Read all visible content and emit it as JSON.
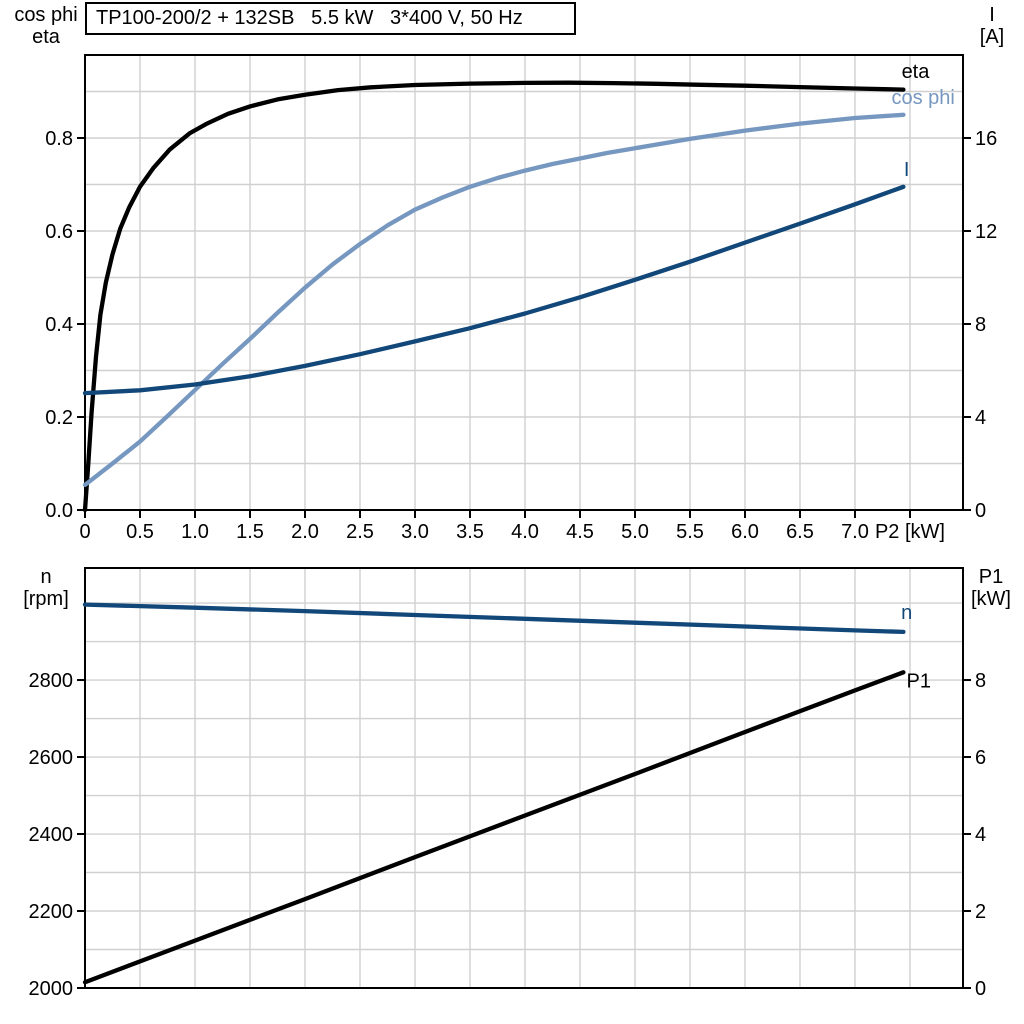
{
  "colors": {
    "black": "#000000",
    "light_blue": "#7697bf",
    "dark_blue": "#124779",
    "grid": "#d0d0d0",
    "frame": "#000000",
    "text": "#000000"
  },
  "chart_data": [
    {
      "type": "line",
      "name": "efficiency-current-chart",
      "title": "TP100-200/2 + 132SB   5.5 kW   3*400 V, 50 Hz",
      "x_axis": {
        "label": "P2 [kW]",
        "range": [
          0,
          7.982
        ],
        "gridlines": [
          0.5,
          1.0,
          1.5,
          2.0,
          2.5,
          3.0,
          3.5,
          4.0,
          4.5,
          5.0,
          5.5,
          6.0,
          6.5,
          7.0,
          7.5
        ],
        "ticks": [
          {
            "v": 0,
            "label": "0"
          },
          {
            "v": 0.5,
            "label": "0.5"
          },
          {
            "v": 1,
            "label": "1.0"
          },
          {
            "v": 1.5,
            "label": "1.5"
          },
          {
            "v": 2,
            "label": "2.0"
          },
          {
            "v": 2.5,
            "label": "2.5"
          },
          {
            "v": 3,
            "label": "3.0"
          },
          {
            "v": 3.5,
            "label": "3.5"
          },
          {
            "v": 4,
            "label": "4.0"
          },
          {
            "v": 4.5,
            "label": "4.5"
          },
          {
            "v": 5,
            "label": "5.0"
          },
          {
            "v": 5.5,
            "label": "5.5"
          },
          {
            "v": 6,
            "label": "6.0"
          },
          {
            "v": 6.5,
            "label": "6.5"
          },
          {
            "v": 7,
            "label": "7.0"
          },
          {
            "v": 7.5,
            "label": "P2 [kW]"
          }
        ]
      },
      "y_left": {
        "label": "cos phi / eta",
        "unit_lines": [
          "cos phi",
          "eta"
        ],
        "range": [
          0,
          0.9785
        ],
        "gridlines": [
          0.1,
          0.2,
          0.3,
          0.4,
          0.5,
          0.6,
          0.7,
          0.8,
          0.9
        ],
        "ticks": [
          {
            "v": 0,
            "label": "0.0"
          },
          {
            "v": 0.2,
            "label": "0.2"
          },
          {
            "v": 0.4,
            "label": "0.4"
          },
          {
            "v": 0.6,
            "label": "0.6"
          },
          {
            "v": 0.8,
            "label": "0.8"
          }
        ]
      },
      "y_right": {
        "label": "I [A]",
        "unit_lines": [
          "I",
          "[A]"
        ],
        "range": [
          0,
          19.57
        ],
        "ticks": [
          {
            "v": 0,
            "label": "0"
          },
          {
            "v": 4,
            "label": "4"
          },
          {
            "v": 8,
            "label": "8"
          },
          {
            "v": 12,
            "label": "12"
          },
          {
            "v": 16,
            "label": "16"
          }
        ]
      },
      "series": [
        {
          "name": "eta",
          "axis": "left",
          "color": "black",
          "points": [
            [
              0,
              0
            ],
            [
              0.03,
              0.1
            ],
            [
              0.06,
              0.21
            ],
            [
              0.1,
              0.33
            ],
            [
              0.14,
              0.42
            ],
            [
              0.19,
              0.49
            ],
            [
              0.25,
              0.55
            ],
            [
              0.32,
              0.605
            ],
            [
              0.4,
              0.65
            ],
            [
              0.5,
              0.695
            ],
            [
              0.62,
              0.735
            ],
            [
              0.77,
              0.775
            ],
            [
              0.95,
              0.81
            ],
            [
              1.1,
              0.83
            ],
            [
              1.3,
              0.852
            ],
            [
              1.5,
              0.868
            ],
            [
              1.75,
              0.883
            ],
            [
              2.0,
              0.893
            ],
            [
              2.3,
              0.903
            ],
            [
              2.6,
              0.909
            ],
            [
              3.0,
              0.914
            ],
            [
              3.5,
              0.917
            ],
            [
              4.0,
              0.9185
            ],
            [
              4.4,
              0.919
            ],
            [
              4.8,
              0.918
            ],
            [
              5.2,
              0.9165
            ],
            [
              5.6,
              0.9145
            ],
            [
              6.0,
              0.9125
            ],
            [
              6.5,
              0.9095
            ],
            [
              7.0,
              0.9065
            ],
            [
              7.44,
              0.904
            ]
          ]
        },
        {
          "name": "cos-phi",
          "axis": "left",
          "color": "light_blue",
          "points": [
            [
              0,
              0.054
            ],
            [
              0.25,
              0.1
            ],
            [
              0.5,
              0.147
            ],
            [
              0.75,
              0.202
            ],
            [
              1.0,
              0.258
            ],
            [
              1.25,
              0.314
            ],
            [
              1.5,
              0.368
            ],
            [
              1.75,
              0.424
            ],
            [
              2.0,
              0.478
            ],
            [
              2.25,
              0.528
            ],
            [
              2.5,
              0.572
            ],
            [
              2.75,
              0.612
            ],
            [
              3.0,
              0.646
            ],
            [
              3.25,
              0.672
            ],
            [
              3.5,
              0.695
            ],
            [
              3.75,
              0.714
            ],
            [
              4.0,
              0.73
            ],
            [
              4.25,
              0.744
            ],
            [
              4.5,
              0.756
            ],
            [
              4.75,
              0.768
            ],
            [
              5.0,
              0.778
            ],
            [
              5.5,
              0.798
            ],
            [
              6.0,
              0.816
            ],
            [
              6.5,
              0.831
            ],
            [
              7.0,
              0.843
            ],
            [
              7.44,
              0.85
            ]
          ]
        },
        {
          "name": "current",
          "axis": "right",
          "color": "dark_blue",
          "points": [
            [
              0,
              5.03
            ],
            [
              0.5,
              5.15
            ],
            [
              1.0,
              5.4
            ],
            [
              1.5,
              5.75
            ],
            [
              2.0,
              6.2
            ],
            [
              2.5,
              6.7
            ],
            [
              3.0,
              7.25
            ],
            [
              3.5,
              7.82
            ],
            [
              4.0,
              8.45
            ],
            [
              4.5,
              9.15
            ],
            [
              5.0,
              9.9
            ],
            [
              5.5,
              10.68
            ],
            [
              6.0,
              11.5
            ],
            [
              6.5,
              12.32
            ],
            [
              7.0,
              13.15
            ],
            [
              7.44,
              13.9
            ]
          ]
        }
      ],
      "annotations": [
        {
          "text": "eta",
          "x": 7.55,
          "y": 0.944,
          "axis": "left",
          "color": "black"
        },
        {
          "text": "cos phi",
          "x": 7.62,
          "y": 0.888,
          "axis": "left",
          "color": "light_blue"
        },
        {
          "text": "I",
          "x": 7.47,
          "y": 0.733,
          "axis": "left",
          "color": "dark_blue"
        }
      ]
    },
    {
      "type": "line",
      "name": "speed-power-chart",
      "title": "",
      "x_axis": {
        "label": "",
        "range": [
          0,
          7.982
        ],
        "gridlines": [
          0.5,
          1.0,
          1.5,
          2.0,
          2.5,
          3.0,
          3.5,
          4.0,
          4.5,
          5.0,
          5.5,
          6.0,
          6.5,
          7.0,
          7.5
        ],
        "ticks": []
      },
      "y_left": {
        "label": "n [rpm]",
        "unit_lines": [
          "n",
          "[rpm]"
        ],
        "range": [
          2000,
          3091
        ],
        "gridlines": [
          2100,
          2200,
          2300,
          2400,
          2500,
          2600,
          2700,
          2800,
          2900,
          3000
        ],
        "ticks": [
          {
            "v": 2000,
            "label": "2000"
          },
          {
            "v": 2200,
            "label": "2200"
          },
          {
            "v": 2400,
            "label": "2400"
          },
          {
            "v": 2600,
            "label": "2600"
          },
          {
            "v": 2800,
            "label": "2800"
          }
        ]
      },
      "y_right": {
        "label": "P1 [kW]",
        "unit_lines": [
          "P1",
          "[kW]"
        ],
        "range": [
          0,
          10.91
        ],
        "ticks": [
          {
            "v": 0,
            "label": "0"
          },
          {
            "v": 2,
            "label": "2"
          },
          {
            "v": 4,
            "label": "4"
          },
          {
            "v": 6,
            "label": "6"
          },
          {
            "v": 8,
            "label": "8"
          }
        ]
      },
      "series": [
        {
          "name": "speed",
          "axis": "left",
          "color": "dark_blue",
          "points": [
            [
              0,
              2996
            ],
            [
              1,
              2988
            ],
            [
              2,
              2979
            ],
            [
              3,
              2969
            ],
            [
              4,
              2959
            ],
            [
              5,
              2949
            ],
            [
              6,
              2939
            ],
            [
              7,
              2929
            ],
            [
              7.44,
              2925
            ]
          ]
        },
        {
          "name": "input-power",
          "axis": "right",
          "color": "black",
          "points": [
            [
              0,
              0.15
            ],
            [
              1,
              1.23
            ],
            [
              2,
              2.31
            ],
            [
              3,
              3.4
            ],
            [
              4,
              4.48
            ],
            [
              5,
              5.56
            ],
            [
              6,
              6.65
            ],
            [
              7,
              7.73
            ],
            [
              7.44,
              8.2
            ]
          ]
        }
      ],
      "annotations": [
        {
          "text": "n",
          "x": 7.47,
          "y": 2977,
          "axis": "left",
          "color": "dark_blue"
        },
        {
          "text": "P1",
          "x": 7.58,
          "y": 2799,
          "axis": "left",
          "color": "black"
        }
      ]
    }
  ]
}
